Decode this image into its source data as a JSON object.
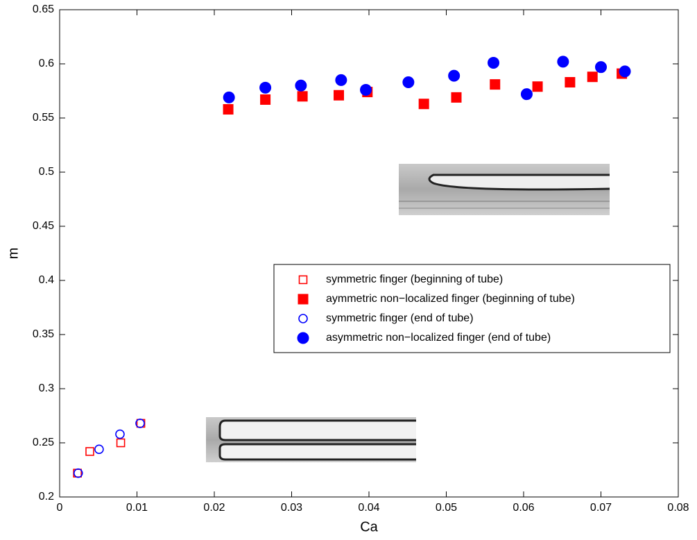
{
  "chart_data": {
    "type": "scatter",
    "xlabel": "Ca",
    "ylabel": "m",
    "xlim": [
      0,
      0.08
    ],
    "xticks": [
      0,
      0.01,
      0.02,
      0.03,
      0.04,
      0.05,
      0.06,
      0.07,
      0.08
    ],
    "ylim": [
      0.2,
      0.65
    ],
    "yticks": [
      0.2,
      0.25,
      0.3,
      0.35,
      0.4,
      0.45,
      0.5,
      0.55,
      0.6,
      0.65
    ],
    "grid": false,
    "legend": "right",
    "series": [
      {
        "name": "symmetric finger  (beginning of tube)",
        "color": "#ff0000",
        "marker": "square",
        "filled": false,
        "x": [
          0.0023,
          0.0039,
          0.0079,
          0.0105
        ],
        "values": [
          0.222,
          0.242,
          0.25,
          0.268
        ]
      },
      {
        "name": "aymmetric non−localized finger (beginning of tube)",
        "color": "#ff0000",
        "marker": "square",
        "filled": true,
        "x": [
          0.0218,
          0.0266,
          0.0314,
          0.0361,
          0.0398,
          0.0471,
          0.0513,
          0.0563,
          0.0618,
          0.066,
          0.0689,
          0.0727
        ],
        "values": [
          0.558,
          0.567,
          0.57,
          0.571,
          0.574,
          0.563,
          0.569,
          0.581,
          0.579,
          0.583,
          0.588,
          0.591
        ]
      },
      {
        "name": "symmetric finger  (end of tube)",
        "color": "#0000ff",
        "marker": "circle",
        "filled": false,
        "x": [
          0.0024,
          0.0051,
          0.0078,
          0.0104
        ],
        "values": [
          0.222,
          0.244,
          0.258,
          0.268
        ]
      },
      {
        "name": "asymmetric non−localized finger (end of tube)",
        "color": "#0000ff",
        "marker": "circle",
        "filled": true,
        "x": [
          0.0219,
          0.0266,
          0.0312,
          0.0364,
          0.0396,
          0.0451,
          0.051,
          0.0561,
          0.0604,
          0.0651,
          0.07,
          0.0731
        ],
        "values": [
          0.569,
          0.578,
          0.58,
          0.585,
          0.576,
          0.583,
          0.589,
          0.601,
          0.572,
          0.602,
          0.597,
          0.593
        ]
      }
    ]
  }
}
